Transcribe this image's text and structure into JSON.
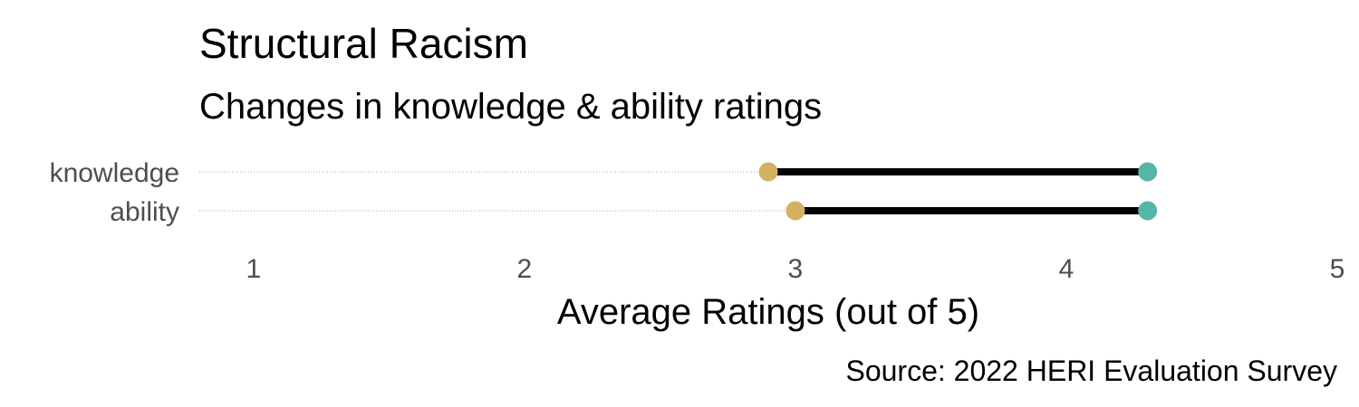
{
  "chart_data": {
    "type": "dumbbell",
    "title": "Structural Racism",
    "subtitle": "Changes in knowledge & ability ratings",
    "xlabel": "Average Ratings (out of 5)",
    "caption": "Source: 2022 HERI Evaluation Survey",
    "xlim": [
      0.8,
      5.0
    ],
    "x_ticks": [
      "1",
      "2",
      "3",
      "4",
      "5"
    ],
    "x_tick_values": [
      1,
      2,
      3,
      4,
      5
    ],
    "categories": [
      "knowledge",
      "ability"
    ],
    "series": [
      {
        "values": [
          2.9,
          3.0
        ]
      },
      {
        "values": [
          4.3,
          4.3
        ]
      }
    ],
    "colors": {
      "start": "#d4b062",
      "end": "#56b4a9",
      "segment": "#000000",
      "guide": "#a6a6a6"
    },
    "grid": false
  }
}
